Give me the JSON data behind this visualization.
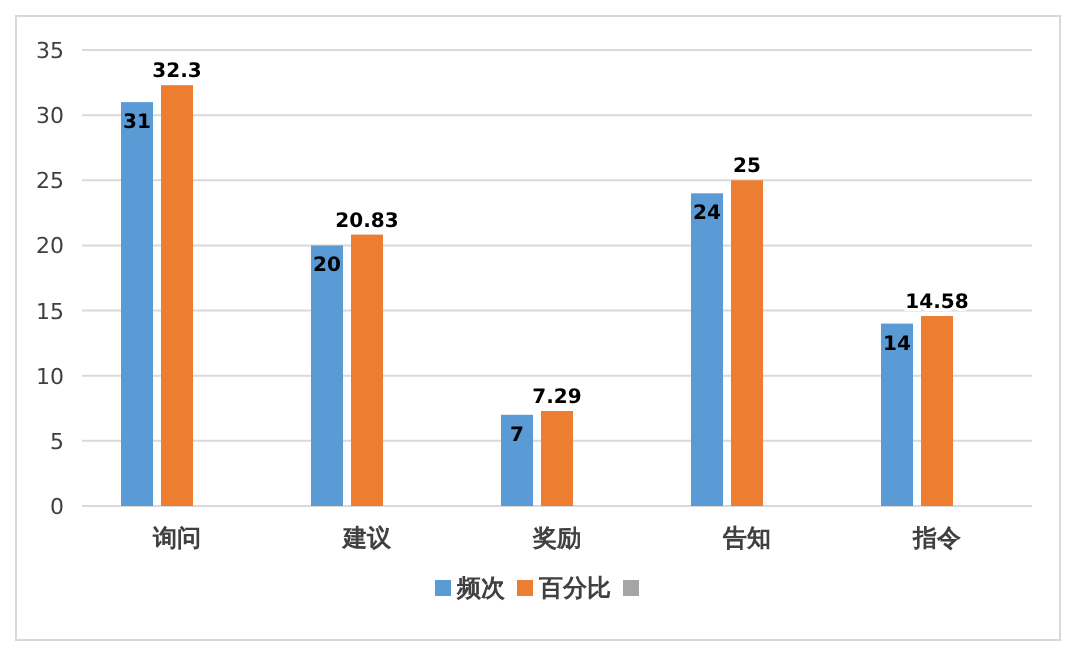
{
  "chart_data": {
    "type": "bar",
    "categories": [
      "询问",
      "建议",
      "奖励",
      "告知",
      "指令"
    ],
    "series": [
      {
        "name": "频次",
        "color": "#5b9bd5",
        "values": [
          31,
          20,
          7,
          24,
          14
        ]
      },
      {
        "name": "百分比",
        "color": "#ed7d31",
        "values": [
          32.3,
          20.83,
          7.29,
          25,
          14.58
        ]
      },
      {
        "color": "#a5a5a5",
        "values": [
          null,
          null,
          null,
          null,
          null
        ]
      }
    ],
    "ylim": [
      0,
      35
    ],
    "yticks": [
      0,
      5,
      10,
      15,
      20,
      25,
      30,
      35
    ],
    "grid": "y",
    "legend": "bottom",
    "data_labels": true
  }
}
